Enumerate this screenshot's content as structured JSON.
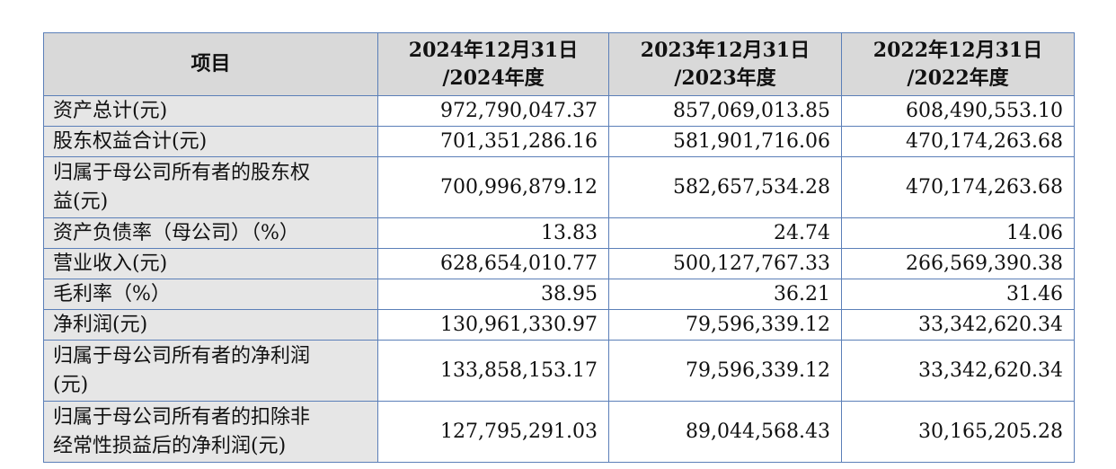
{
  "table": {
    "headers": [
      {
        "lines": [
          "项目"
        ]
      },
      {
        "lines": [
          "2024年12月31日",
          "/2024年度"
        ]
      },
      {
        "lines": [
          "2023年12月31日",
          "/2023年度"
        ]
      },
      {
        "lines": [
          "2022年12月31日",
          "/2022年度"
        ]
      }
    ],
    "rows": [
      {
        "label": [
          "资产总计(元)"
        ],
        "values": [
          "972,790,047.37",
          "857,069,013.85",
          "608,490,553.10"
        ]
      },
      {
        "label": [
          "股东权益合计(元)"
        ],
        "values": [
          "701,351,286.16",
          "581,901,716.06",
          "470,174,263.68"
        ]
      },
      {
        "label": [
          "归属于母公司所有者的股东权",
          "益(元)"
        ],
        "values": [
          "700,996,879.12",
          "582,657,534.28",
          "470,174,263.68"
        ]
      },
      {
        "label": [
          "资产负债率（母公司）（%）"
        ],
        "values": [
          "13.83",
          "24.74",
          "14.06"
        ]
      },
      {
        "label": [
          "营业收入(元)"
        ],
        "values": [
          "628,654,010.77",
          "500,127,767.33",
          "266,569,390.38"
        ]
      },
      {
        "label": [
          "毛利率（%）"
        ],
        "values": [
          "38.95",
          "36.21",
          "31.46"
        ]
      },
      {
        "label": [
          "净利润(元)"
        ],
        "values": [
          "130,961,330.97",
          "79,596,339.12",
          "33,342,620.34"
        ]
      },
      {
        "label": [
          "归属于母公司所有者的净利润",
          "(元)"
        ],
        "values": [
          "133,858,153.17",
          "79,596,339.12",
          "33,342,620.34"
        ]
      },
      {
        "label": [
          "归属于母公司所有者的扣除非",
          "经常性损益后的净利润(元)"
        ],
        "values": [
          "127,795,291.03",
          "89,044,568.43",
          "30,165,205.28"
        ]
      }
    ]
  }
}
